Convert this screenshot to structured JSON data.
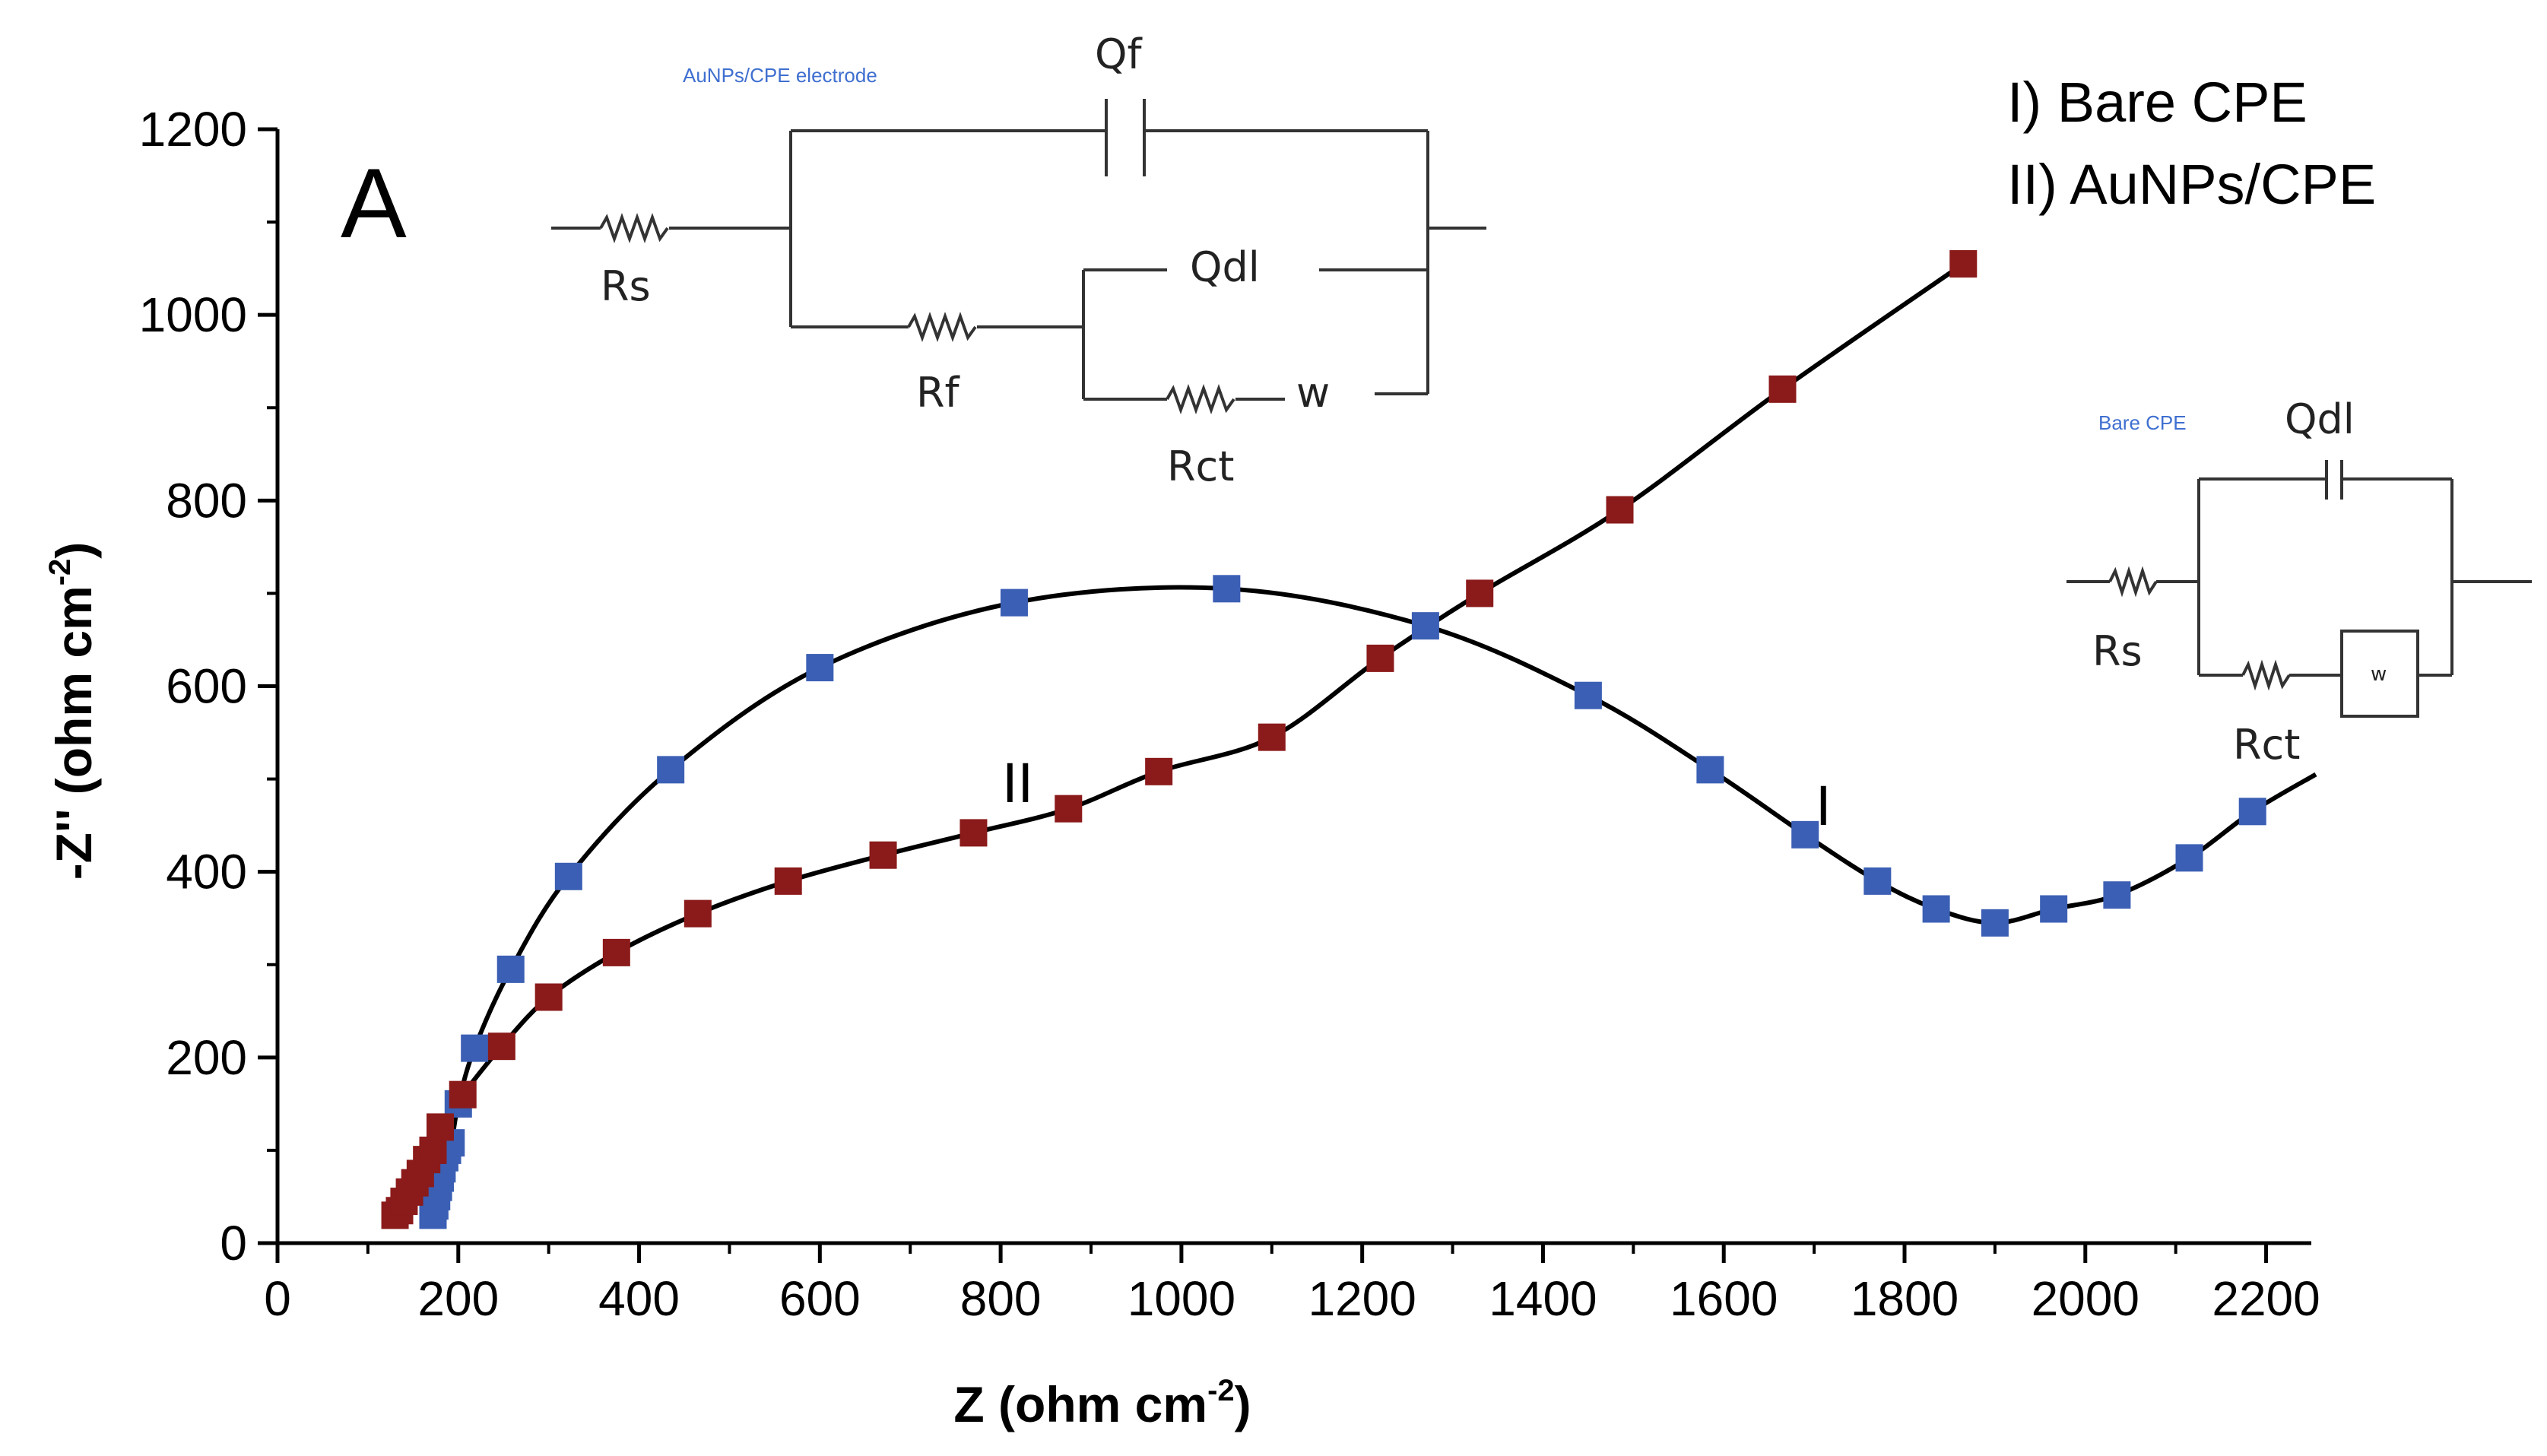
{
  "chart_data": {
    "type": "scatter",
    "panel_label": "A",
    "xlabel": "Z (ohm cm",
    "xlabel_sup": "-2",
    "xlabel_close": ")",
    "ylabel": "-Z'' (ohm cm",
    "ylabel_sup": "-2",
    "ylabel_close": ")",
    "xlim": [
      0,
      2250
    ],
    "ylim": [
      0,
      1200
    ],
    "xticks": [
      0,
      200,
      400,
      600,
      800,
      1000,
      1200,
      1400,
      1600,
      1800,
      2000,
      2200
    ],
    "yticks": [
      0,
      200,
      400,
      600,
      800,
      1000,
      1200
    ],
    "legend": [
      "I) Bare CPE",
      "II) AuNPs/CPE"
    ],
    "series": [
      {
        "name": "I) Bare CPE",
        "curve_label": "I",
        "color": "#3b5fb4",
        "x": [
          172,
          174,
          176,
          178,
          180,
          182,
          185,
          188,
          192,
          200,
          218,
          258,
          322,
          435,
          600,
          815,
          1050,
          1270,
          1450,
          1585,
          1690,
          1770,
          1835,
          1900,
          1965,
          2035,
          2115,
          2185
        ],
        "y": [
          30,
          40,
          50,
          60,
          70,
          80,
          92,
          100,
          108,
          150,
          210,
          295,
          395,
          510,
          620,
          690,
          705,
          665,
          590,
          510,
          440,
          390,
          360,
          345,
          360,
          375,
          415,
          465
        ]
      },
      {
        "name": "II) AuNPs/CPE",
        "curve_label": "II",
        "color": "#8b1a1a",
        "x": [
          130,
          135,
          140,
          146,
          152,
          158,
          165,
          172,
          180,
          205,
          248,
          300,
          375,
          465,
          565,
          670,
          770,
          875,
          975,
          1100,
          1220,
          1330,
          1485,
          1665,
          1865
        ],
        "y": [
          30,
          35,
          45,
          55,
          65,
          75,
          90,
          100,
          125,
          160,
          212,
          265,
          313,
          355,
          390,
          418,
          442,
          468,
          508,
          545,
          630,
          700,
          790,
          920,
          1055
        ]
      }
    ]
  },
  "circuits": {
    "aunps": {
      "title": "AuNPs/CPE electrode",
      "labels": [
        "Qf",
        "Rs",
        "Qdl",
        "Rf",
        "w",
        "Rct"
      ]
    },
    "bare": {
      "title": "Bare CPE",
      "labels": [
        "Qdl",
        "Rs",
        "Rct"
      ],
      "warburg": "w"
    }
  }
}
